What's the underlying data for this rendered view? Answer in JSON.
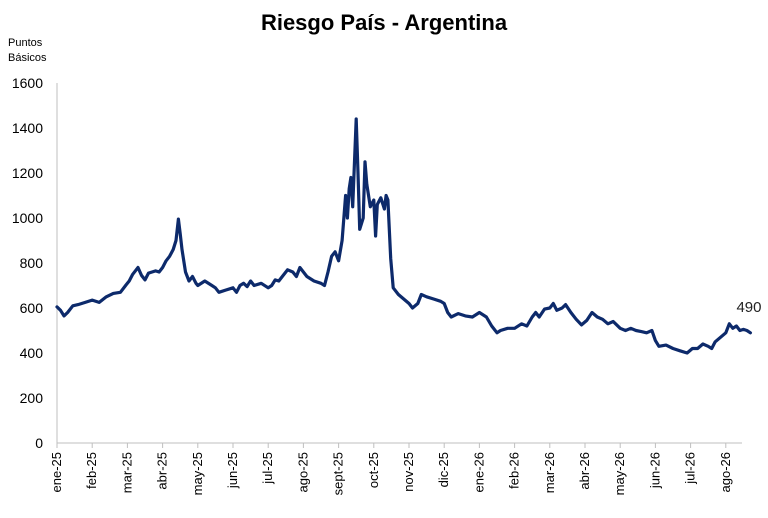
{
  "chart_data": {
    "type": "line",
    "title": "Riesgo País - Argentina",
    "ylabel": "Puntos\nBásicos",
    "xlabel": "",
    "ylim": [
      0,
      1600
    ],
    "yticks": [
      0,
      200,
      400,
      600,
      800,
      1000,
      1200,
      1400,
      1600
    ],
    "grid": false,
    "legend": "none",
    "line_color": "#0d2a6b",
    "categories": [
      "ene-25",
      "feb-25",
      "mar-25",
      "abr-25",
      "may-25",
      "jun-25",
      "jul-25",
      "ago-25",
      "sept-25",
      "oct-25",
      "nov-25",
      "dic-25",
      "ene-26",
      "feb-26",
      "mar-26",
      "abr-26",
      "may-26",
      "jun-26",
      "jul-26",
      "ago-26"
    ],
    "end_label": "490",
    "series": [
      {
        "values": [
          [
            0,
            605
          ],
          [
            0.1,
            590
          ],
          [
            0.2,
            565
          ],
          [
            0.3,
            580
          ],
          [
            0.45,
            610
          ],
          [
            0.6,
            615
          ],
          [
            0.8,
            625
          ],
          [
            1.0,
            635
          ],
          [
            1.2,
            625
          ],
          [
            1.4,
            650
          ],
          [
            1.6,
            665
          ],
          [
            1.8,
            670
          ],
          [
            1.95,
            700
          ],
          [
            2.05,
            720
          ],
          [
            2.15,
            750
          ],
          [
            2.3,
            780
          ],
          [
            2.4,
            745
          ],
          [
            2.5,
            725
          ],
          [
            2.6,
            755
          ],
          [
            2.8,
            765
          ],
          [
            2.9,
            760
          ],
          [
            3.0,
            780
          ],
          [
            3.1,
            810
          ],
          [
            3.2,
            830
          ],
          [
            3.3,
            860
          ],
          [
            3.38,
            900
          ],
          [
            3.45,
            995
          ],
          [
            3.5,
            930
          ],
          [
            3.55,
            860
          ],
          [
            3.65,
            760
          ],
          [
            3.75,
            720
          ],
          [
            3.85,
            740
          ],
          [
            3.95,
            710
          ],
          [
            4.0,
            700
          ],
          [
            4.2,
            720
          ],
          [
            4.4,
            700
          ],
          [
            4.5,
            690
          ],
          [
            4.6,
            670
          ],
          [
            4.8,
            680
          ],
          [
            5.0,
            690
          ],
          [
            5.1,
            670
          ],
          [
            5.2,
            700
          ],
          [
            5.3,
            710
          ],
          [
            5.4,
            695
          ],
          [
            5.5,
            720
          ],
          [
            5.6,
            700
          ],
          [
            5.8,
            710
          ],
          [
            6.0,
            690
          ],
          [
            6.1,
            700
          ],
          [
            6.2,
            725
          ],
          [
            6.3,
            720
          ],
          [
            6.4,
            740
          ],
          [
            6.55,
            770
          ],
          [
            6.7,
            760
          ],
          [
            6.8,
            740
          ],
          [
            6.9,
            780
          ],
          [
            7.0,
            760
          ],
          [
            7.1,
            740
          ],
          [
            7.3,
            720
          ],
          [
            7.5,
            710
          ],
          [
            7.6,
            700
          ],
          [
            7.7,
            760
          ],
          [
            7.8,
            830
          ],
          [
            7.9,
            850
          ],
          [
            8.0,
            810
          ],
          [
            8.1,
            900
          ],
          [
            8.2,
            1100
          ],
          [
            8.25,
            1000
          ],
          [
            8.3,
            1130
          ],
          [
            8.35,
            1180
          ],
          [
            8.4,
            1050
          ],
          [
            8.5,
            1440
          ],
          [
            8.55,
            1200
          ],
          [
            8.6,
            950
          ],
          [
            8.7,
            1000
          ],
          [
            8.75,
            1250
          ],
          [
            8.8,
            1150
          ],
          [
            8.9,
            1050
          ],
          [
            9.0,
            1080
          ],
          [
            9.05,
            920
          ],
          [
            9.1,
            1060
          ],
          [
            9.2,
            1090
          ],
          [
            9.3,
            1040
          ],
          [
            9.35,
            1100
          ],
          [
            9.4,
            1080
          ],
          [
            9.48,
            820
          ],
          [
            9.55,
            690
          ],
          [
            9.7,
            660
          ],
          [
            9.85,
            640
          ],
          [
            10.0,
            620
          ],
          [
            10.1,
            600
          ],
          [
            10.25,
            620
          ],
          [
            10.35,
            660
          ],
          [
            10.5,
            650
          ],
          [
            10.7,
            640
          ],
          [
            10.9,
            630
          ],
          [
            11.0,
            620
          ],
          [
            11.1,
            580
          ],
          [
            11.2,
            560
          ],
          [
            11.4,
            575
          ],
          [
            11.6,
            565
          ],
          [
            11.8,
            560
          ],
          [
            12.0,
            580
          ],
          [
            12.2,
            560
          ],
          [
            12.35,
            520
          ],
          [
            12.5,
            490
          ],
          [
            12.6,
            500
          ],
          [
            12.8,
            510
          ],
          [
            13.0,
            510
          ],
          [
            13.2,
            530
          ],
          [
            13.35,
            520
          ],
          [
            13.5,
            560
          ],
          [
            13.6,
            580
          ],
          [
            13.7,
            560
          ],
          [
            13.85,
            595
          ],
          [
            14.0,
            600
          ],
          [
            14.1,
            620
          ],
          [
            14.2,
            590
          ],
          [
            14.35,
            600
          ],
          [
            14.45,
            615
          ],
          [
            14.6,
            580
          ],
          [
            14.75,
            550
          ],
          [
            14.9,
            525
          ],
          [
            15.05,
            545
          ],
          [
            15.2,
            580
          ],
          [
            15.35,
            560
          ],
          [
            15.5,
            550
          ],
          [
            15.65,
            530
          ],
          [
            15.8,
            540
          ],
          [
            16.0,
            510
          ],
          [
            16.15,
            500
          ],
          [
            16.3,
            510
          ],
          [
            16.45,
            500
          ],
          [
            16.6,
            495
          ],
          [
            16.75,
            490
          ],
          [
            16.9,
            500
          ],
          [
            17.0,
            455
          ],
          [
            17.1,
            430
          ],
          [
            17.3,
            435
          ],
          [
            17.5,
            420
          ],
          [
            17.7,
            410
          ],
          [
            17.9,
            400
          ],
          [
            18.05,
            420
          ],
          [
            18.2,
            420
          ],
          [
            18.35,
            440
          ],
          [
            18.5,
            430
          ],
          [
            18.6,
            420
          ],
          [
            18.7,
            450
          ],
          [
            18.85,
            470
          ],
          [
            19.0,
            490
          ],
          [
            19.1,
            530
          ],
          [
            19.2,
            510
          ],
          [
            19.3,
            520
          ],
          [
            19.4,
            500
          ],
          [
            19.5,
            505
          ],
          [
            19.6,
            500
          ],
          [
            19.7,
            490
          ]
        ]
      }
    ]
  }
}
